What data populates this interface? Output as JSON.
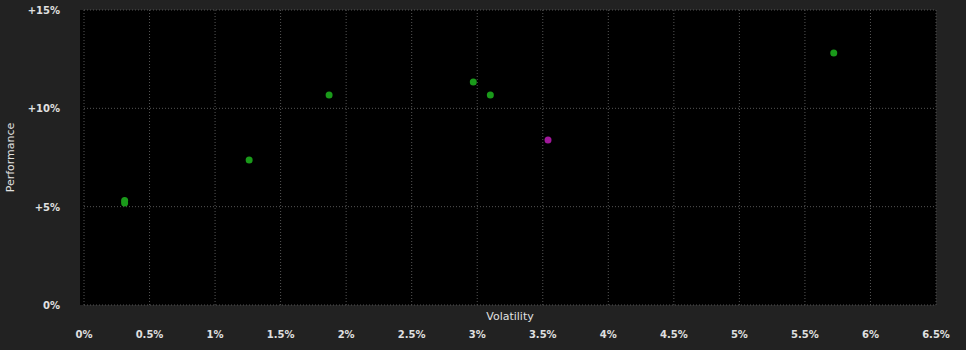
{
  "chart_data": {
    "type": "scatter",
    "x_label": "Volatility",
    "y_label": "Performance",
    "x": [
      0.31,
      0.31,
      1.26,
      1.87,
      2.97,
      3.1,
      3.54,
      5.72
    ],
    "values": [
      5.19,
      5.31,
      7.37,
      10.68,
      11.34,
      10.68,
      8.39,
      12.81
    ],
    "colors": [
      "#1a9a1a",
      "#1a9a1a",
      "#1a9a1a",
      "#1a9a1a",
      "#1a9a1a",
      "#1a9a1a",
      "#a0189a",
      "#1a9a1a"
    ],
    "xlim": [
      0,
      6.5
    ],
    "ylim": [
      0,
      15
    ],
    "xticks": [
      {
        "value": 0,
        "label": "0%"
      },
      {
        "value": 0.5,
        "label": "0.5%"
      },
      {
        "value": 1,
        "label": "1%"
      },
      {
        "value": 1.5,
        "label": "1.5%"
      },
      {
        "value": 2,
        "label": "2%"
      },
      {
        "value": 2.5,
        "label": "2.5%"
      },
      {
        "value": 3,
        "label": "3%"
      },
      {
        "value": 3.5,
        "label": "3.5%"
      },
      {
        "value": 4,
        "label": "4%"
      },
      {
        "value": 4.5,
        "label": "4.5%"
      },
      {
        "value": 5,
        "label": "5%"
      },
      {
        "value": 5.5,
        "label": "5.5%"
      },
      {
        "value": 6,
        "label": "6%"
      },
      {
        "value": 6.5,
        "label": "6.5%"
      }
    ],
    "yticks": [
      {
        "value": 0,
        "label": "0%"
      },
      {
        "value": 5,
        "label": "+5%"
      },
      {
        "value": 10,
        "label": "+10%"
      },
      {
        "value": 15,
        "label": "+15%"
      }
    ],
    "grid": true,
    "marker": "circle"
  }
}
